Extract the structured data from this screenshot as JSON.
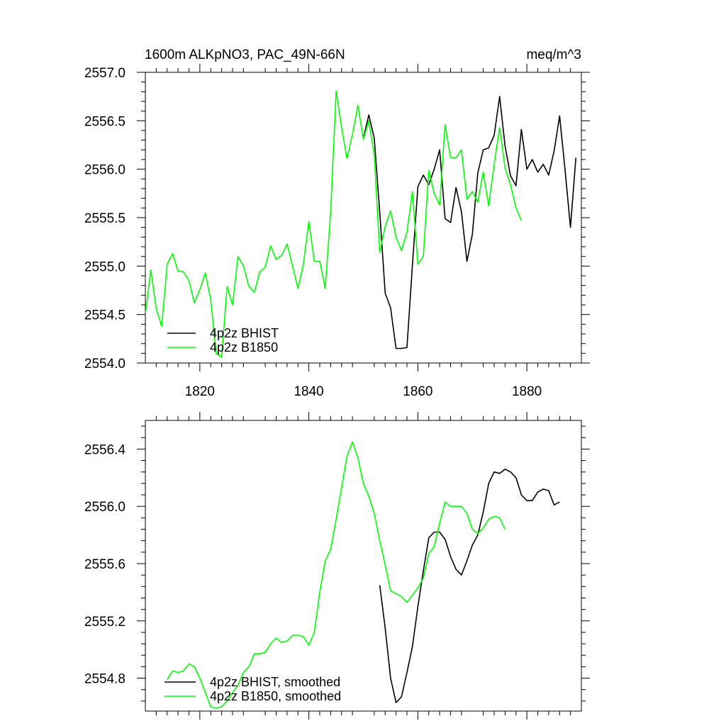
{
  "chart_data": [
    {
      "type": "line",
      "title": "1600m ALKpNO3, PAC_49N-66N",
      "units": "meq/m^3",
      "xlabel": "",
      "ylabel": "",
      "xlim": [
        1810,
        1890
      ],
      "ylim": [
        2554.0,
        2557.0
      ],
      "xticks": [
        1820,
        1840,
        1860,
        1880
      ],
      "xtick_labels": [
        "1820",
        "1840",
        "1860",
        "1880"
      ],
      "yticks": [
        2554.0,
        2554.5,
        2555.0,
        2555.5,
        2556.0,
        2556.5,
        2557.0
      ],
      "ytick_labels": [
        "2554.0",
        "2554.5",
        "2555.0",
        "2555.5",
        "2556.0",
        "2556.5",
        "2557.0"
      ],
      "grid": false,
      "legend": "bottom-left",
      "series": [
        {
          "name": "4p2z BHIST",
          "color": "#000000",
          "x": [
            1850,
            1851,
            1852,
            1853,
            1854,
            1855,
            1856,
            1857,
            1858,
            1859,
            1860,
            1861,
            1862,
            1863,
            1864,
            1865,
            1866,
            1867,
            1868,
            1869,
            1870,
            1871,
            1872,
            1873,
            1874,
            1875,
            1876,
            1877,
            1878,
            1879,
            1880,
            1881,
            1882,
            1883,
            1884,
            1885,
            1886,
            1887,
            1888,
            1889
          ],
          "y": [
            2556.32,
            2556.56,
            2556.32,
            2555.56,
            2554.72,
            2554.57,
            2554.15,
            2554.15,
            2554.16,
            2555.01,
            2555.82,
            2555.94,
            2555.84,
            2556.0,
            2556.2,
            2555.49,
            2555.45,
            2555.81,
            2555.56,
            2555.05,
            2555.33,
            2555.96,
            2556.2,
            2556.22,
            2556.35,
            2556.75,
            2556.24,
            2555.93,
            2555.83,
            2556.41,
            2556.0,
            2556.1,
            2555.97,
            2556.05,
            2555.94,
            2556.19,
            2556.55,
            2556.0,
            2555.4,
            2556.12
          ]
        },
        {
          "name": "4p2z B1850",
          "color": "#00ff00",
          "x": [
            1810,
            1811,
            1812,
            1813,
            1814,
            1815,
            1816,
            1817,
            1818,
            1819,
            1820,
            1821,
            1822,
            1823,
            1824,
            1825,
            1826,
            1827,
            1828,
            1829,
            1830,
            1831,
            1832,
            1833,
            1834,
            1835,
            1836,
            1837,
            1838,
            1839,
            1840,
            1841,
            1842,
            1843,
            1844,
            1845,
            1846,
            1847,
            1848,
            1849,
            1850,
            1851,
            1852,
            1853,
            1854,
            1855,
            1856,
            1857,
            1858,
            1859,
            1860,
            1861,
            1862,
            1863,
            1864,
            1865,
            1866,
            1867,
            1868,
            1869,
            1870,
            1871,
            1872,
            1873,
            1874,
            1875,
            1876,
            1877,
            1878,
            1879
          ],
          "y": [
            2554.5,
            2554.96,
            2554.56,
            2554.38,
            2555.02,
            2555.13,
            2554.95,
            2554.94,
            2554.85,
            2554.62,
            2554.76,
            2554.93,
            2554.65,
            2554.1,
            2554.06,
            2554.79,
            2554.6,
            2555.1,
            2555.0,
            2554.79,
            2554.73,
            2554.94,
            2554.99,
            2555.21,
            2555.07,
            2555.11,
            2555.23,
            2555.0,
            2554.77,
            2555.02,
            2555.46,
            2555.05,
            2555.05,
            2554.77,
            2555.56,
            2556.81,
            2556.43,
            2556.11,
            2556.36,
            2556.66,
            2556.31,
            2556.5,
            2556.14,
            2555.14,
            2555.41,
            2555.57,
            2555.3,
            2555.16,
            2555.35,
            2555.77,
            2555.02,
            2555.1,
            2555.99,
            2555.75,
            2555.63,
            2556.46,
            2556.12,
            2556.12,
            2556.2,
            2555.69,
            2555.77,
            2555.66,
            2555.97,
            2555.62,
            2556.05,
            2556.43,
            2556.01,
            2555.84,
            2555.6,
            2555.47
          ]
        }
      ]
    },
    {
      "type": "line",
      "title": "",
      "xlabel": "",
      "ylabel": "",
      "xlim": [
        1810,
        1890
      ],
      "ylim": [
        2554.57,
        2556.6
      ],
      "xticks": [
        1820,
        1840,
        1860,
        1880
      ],
      "xtick_labels": [],
      "yticks": [
        2554.8,
        2555.2,
        2555.6,
        2556.0,
        2556.4
      ],
      "ytick_labels": [
        "2554.8",
        "2555.2",
        "2555.6",
        "2556.0",
        "2556.4"
      ],
      "grid": false,
      "legend": "bottom-left",
      "series": [
        {
          "name": "4p2z BHIST, smoothed",
          "color": "#000000",
          "x": [
            1853,
            1854,
            1855,
            1856,
            1857,
            1858,
            1859,
            1860,
            1861,
            1862,
            1863,
            1864,
            1865,
            1866,
            1867,
            1868,
            1869,
            1870,
            1871,
            1872,
            1873,
            1874,
            1875,
            1876,
            1877,
            1878,
            1879,
            1880,
            1881,
            1882,
            1883,
            1884,
            1885,
            1886
          ],
          "y": [
            2555.45,
            2555.15,
            2554.8,
            2554.63,
            2554.67,
            2554.84,
            2555.02,
            2555.3,
            2555.55,
            2555.78,
            2555.82,
            2555.82,
            2555.77,
            2555.65,
            2555.56,
            2555.52,
            2555.62,
            2555.73,
            2555.8,
            2555.96,
            2556.16,
            2556.24,
            2556.23,
            2556.26,
            2556.24,
            2556.2,
            2556.08,
            2556.04,
            2556.04,
            2556.1,
            2556.12,
            2556.11,
            2556.01,
            2556.03
          ]
        },
        {
          "name": "4p2z B1850, smoothed",
          "color": "#00ff00",
          "x": [
            1814,
            1815,
            1816,
            1817,
            1818,
            1819,
            1820,
            1821,
            1822,
            1823,
            1824,
            1825,
            1826,
            1827,
            1828,
            1829,
            1830,
            1831,
            1832,
            1833,
            1834,
            1835,
            1836,
            1837,
            1838,
            1839,
            1840,
            1841,
            1842,
            1843,
            1844,
            1845,
            1846,
            1847,
            1848,
            1849,
            1850,
            1851,
            1852,
            1853,
            1854,
            1855,
            1856,
            1857,
            1858,
            1859,
            1860,
            1861,
            1862,
            1863,
            1864,
            1865,
            1866,
            1867,
            1868,
            1869,
            1870,
            1871,
            1872,
            1873,
            1874,
            1875,
            1876
          ],
          "y": [
            2554.79,
            2554.85,
            2554.84,
            2554.85,
            2554.9,
            2554.88,
            2554.8,
            2554.7,
            2554.6,
            2554.59,
            2554.6,
            2554.64,
            2554.7,
            2554.75,
            2554.84,
            2554.88,
            2554.97,
            2554.97,
            2554.98,
            2555.04,
            2555.08,
            2555.05,
            2555.06,
            2555.1,
            2555.1,
            2555.09,
            2555.03,
            2555.12,
            2555.4,
            2555.62,
            2555.7,
            2555.91,
            2556.13,
            2556.35,
            2556.45,
            2556.34,
            2556.16,
            2556.07,
            2555.95,
            2555.76,
            2555.59,
            2555.41,
            2555.39,
            2555.37,
            2555.33,
            2555.38,
            2555.43,
            2555.5,
            2555.67,
            2555.72,
            2555.88,
            2556.03,
            2556.0,
            2556.0,
            2556.0,
            2555.95,
            2555.84,
            2555.81,
            2555.85,
            2555.91,
            2555.93,
            2555.92,
            2555.84
          ]
        }
      ]
    }
  ]
}
